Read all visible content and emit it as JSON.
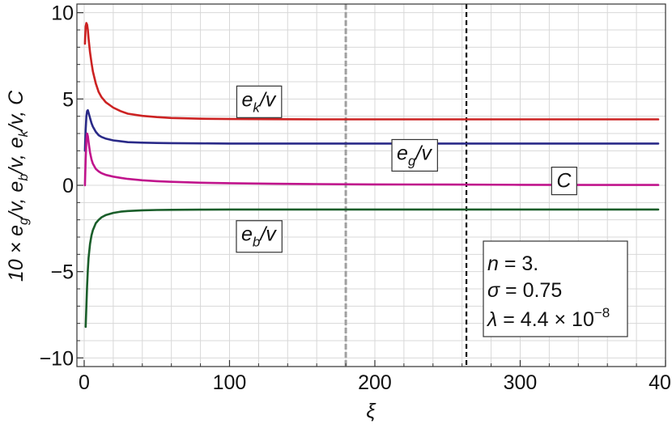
{
  "chart_data": {
    "type": "line",
    "title": "",
    "xlabel": "ξ",
    "ylabel": "10 × e_g/v, e_b/v, e_k/v, C",
    "xlim": [
      -5,
      400
    ],
    "ylim": [
      -10.5,
      10.5
    ],
    "xticks": [
      "0",
      "100",
      "200",
      "300",
      "400"
    ],
    "yticks": [
      "10",
      "5",
      "0",
      "−5",
      "−10"
    ],
    "grid": true,
    "series": [
      {
        "name": "e_k/v",
        "color": "#cc2222",
        "x": [
          0.5,
          1,
          1.5,
          2,
          2.5,
          3,
          4,
          5,
          6,
          8,
          10,
          12,
          15,
          20,
          25,
          30,
          40,
          50,
          60,
          80,
          100,
          130,
          160,
          200,
          250,
          300,
          350,
          395
        ],
        "y": [
          8.2,
          9.2,
          9.4,
          9.3,
          9.0,
          8.5,
          7.7,
          7.1,
          6.6,
          5.9,
          5.4,
          5.1,
          4.8,
          4.5,
          4.3,
          4.15,
          4.02,
          3.95,
          3.9,
          3.86,
          3.84,
          3.83,
          3.82,
          3.82,
          3.82,
          3.82,
          3.82,
          3.82
        ]
      },
      {
        "name": "e_g/v",
        "color": "#2a2a88",
        "x": [
          0.5,
          1,
          1.5,
          2,
          2.5,
          3,
          4,
          5,
          6,
          8,
          10,
          12,
          15,
          20,
          25,
          30,
          40,
          50,
          60,
          80,
          100,
          130,
          160,
          200,
          250,
          300,
          350,
          395
        ],
        "y": [
          2.0,
          3.2,
          4.0,
          4.3,
          4.35,
          4.2,
          3.9,
          3.6,
          3.4,
          3.1,
          2.9,
          2.8,
          2.7,
          2.6,
          2.55,
          2.5,
          2.47,
          2.45,
          2.44,
          2.43,
          2.42,
          2.42,
          2.42,
          2.42,
          2.42,
          2.42,
          2.42,
          2.42
        ]
      },
      {
        "name": "C",
        "color": "#c0148c",
        "x": [
          0.5,
          1,
          1.5,
          2,
          2.5,
          3,
          4,
          5,
          6,
          8,
          10,
          12,
          15,
          20,
          25,
          30,
          40,
          50,
          60,
          80,
          100,
          130,
          160,
          200,
          250,
          300,
          350,
          395
        ],
        "y": [
          0.0,
          1.5,
          2.6,
          3.0,
          2.85,
          2.5,
          1.9,
          1.5,
          1.25,
          0.95,
          0.8,
          0.7,
          0.6,
          0.5,
          0.43,
          0.37,
          0.29,
          0.24,
          0.2,
          0.15,
          0.12,
          0.09,
          0.07,
          0.05,
          0.04,
          0.03,
          0.02,
          0.02
        ]
      },
      {
        "name": "e_b/v",
        "color": "#1a5e2a",
        "x": [
          1,
          1.5,
          2,
          2.5,
          3,
          4,
          5,
          6,
          8,
          10,
          12,
          15,
          20,
          25,
          30,
          40,
          50,
          60,
          80,
          100,
          130,
          160,
          200,
          250,
          300,
          350,
          395
        ],
        "y": [
          -8.2,
          -7.0,
          -5.8,
          -4.9,
          -4.2,
          -3.4,
          -2.9,
          -2.6,
          -2.2,
          -2.0,
          -1.85,
          -1.72,
          -1.6,
          -1.53,
          -1.49,
          -1.45,
          -1.43,
          -1.42,
          -1.41,
          -1.4,
          -1.4,
          -1.4,
          -1.4,
          -1.4,
          -1.4,
          -1.4,
          -1.4
        ]
      }
    ],
    "vlines": [
      {
        "x": 180,
        "color": "#a0a0a0",
        "style": "dashed"
      },
      {
        "x": 263,
        "color": "#000000",
        "style": "dashed"
      }
    ],
    "annotations": [
      {
        "key": "ek",
        "base": "e",
        "sub": "k",
        "rest": "/v",
        "x": 120,
        "y": 5.0
      },
      {
        "key": "eg",
        "base": "e",
        "sub": "g",
        "rest": "/v",
        "x": 227,
        "y": 1.9
      },
      {
        "key": "c",
        "base": "C",
        "sub": "",
        "rest": "",
        "x": 330,
        "y": 0.3
      },
      {
        "key": "eb",
        "base": "e",
        "sub": "b",
        "rest": "/v",
        "x": 120,
        "y": -2.8
      }
    ],
    "parameters": {
      "n_label": "n",
      "n_value": " = 3.",
      "sigma_label": "σ",
      "sigma_value": " = 0.75",
      "lambda_label": "λ",
      "lambda_value": " = 4.4 × 10",
      "lambda_exp": "−8"
    }
  }
}
